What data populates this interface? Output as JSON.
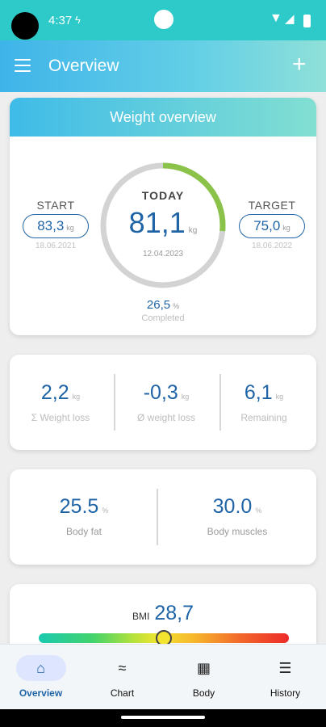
{
  "status_bar": {
    "time": "4:37",
    "charging_symbol": "ϟ"
  },
  "app_bar": {
    "title": "Overview",
    "add_symbol": "+"
  },
  "weight_overview": {
    "title": "Weight overview",
    "start": {
      "label": "START",
      "value": "83,3",
      "unit": "kg",
      "date": "18.06.2021"
    },
    "today": {
      "label": "TODAY",
      "value": "81,1",
      "unit": "kg",
      "date": "12.04.2023"
    },
    "target": {
      "label": "TARGET",
      "value": "75,0",
      "unit": "kg",
      "date": "18.06.2022"
    },
    "completed": {
      "value": "26,5",
      "unit": "%",
      "label": "Completed"
    },
    "progress_fraction": 0.265,
    "progress_color": "#8bc34a",
    "track_color": "#d3d3d3"
  },
  "stats": [
    {
      "value": "2,2",
      "unit": "kg",
      "label": "Σ Weight loss"
    },
    {
      "value": "-0,3",
      "unit": "kg",
      "label": "Ø weight loss"
    },
    {
      "value": "6,1",
      "unit": "kg",
      "label": "Remaining"
    }
  ],
  "body": [
    {
      "value": "25.5",
      "unit": "%",
      "label": "Body fat"
    },
    {
      "value": "30.0",
      "unit": "%",
      "label": "Body muscles"
    }
  ],
  "bmi": {
    "label": "BMI",
    "value": "28,7",
    "marker_fraction": 0.5
  },
  "bottom_nav": {
    "items": [
      {
        "label": "Overview",
        "icon": "home-icon",
        "glyph": "⌂",
        "active": true
      },
      {
        "label": "Chart",
        "icon": "chart-icon",
        "glyph": "≈",
        "active": false
      },
      {
        "label": "Body",
        "icon": "body-icon",
        "glyph": "▦",
        "active": false
      },
      {
        "label": "History",
        "icon": "history-list-icon",
        "glyph": "☰",
        "active": false
      }
    ]
  },
  "colors": {
    "accent": "#1f64a6",
    "app_bar": "#3fb4e9",
    "status_bar": "#2ec9c9"
  }
}
